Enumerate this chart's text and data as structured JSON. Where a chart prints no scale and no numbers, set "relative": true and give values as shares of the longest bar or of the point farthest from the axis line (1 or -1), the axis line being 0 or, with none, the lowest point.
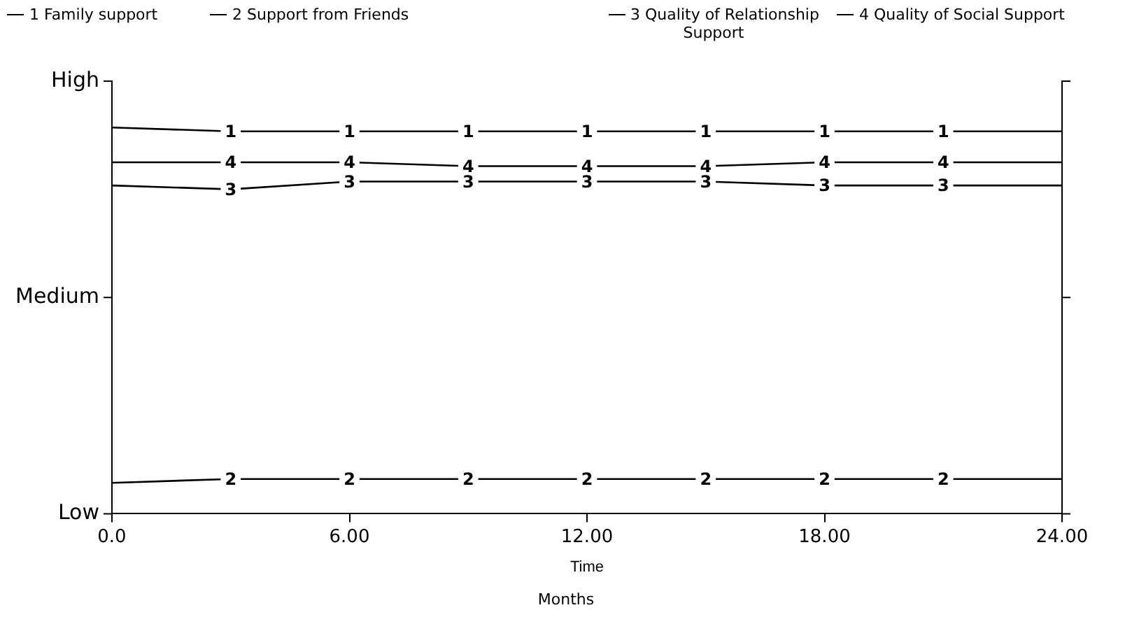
{
  "chart_data": {
    "type": "line",
    "xlabel": "Time",
    "annotations": [
      "Low",
      "Medium",
      "High",
      "Months",
      {
        "text": "1",
        "x": 3,
        "y": 0.99
      },
      {
        "text": "1",
        "x": 6,
        "y": 0.99
      },
      {
        "text": "1",
        "x": 9,
        "y": 0.99
      },
      {
        "text": "1",
        "x": 12,
        "y": 0.99
      },
      {
        "text": "1",
        "x": 15,
        "y": 0.99
      },
      {
        "text": "1",
        "x": 18,
        "y": 0.99
      },
      {
        "text": "1",
        "x": 21,
        "y": 0.99
      },
      {
        "text": "2",
        "x": 3,
        "y": 0.09
      },
      {
        "text": "2",
        "x": 6,
        "y": 0.09
      },
      {
        "text": "2",
        "x": 9,
        "y": 0.09
      },
      {
        "text": "2",
        "x": 12,
        "y": 0.09
      },
      {
        "text": "2",
        "x": 15,
        "y": 0.09
      },
      {
        "text": "2",
        "x": 18,
        "y": 0.09
      },
      {
        "text": "2",
        "x": 21,
        "y": 0.09
      },
      {
        "text": "3",
        "x": 3,
        "y": 0.84
      },
      {
        "text": "3",
        "x": 6,
        "y": 0.86
      },
      {
        "text": "3",
        "x": 9,
        "y": 0.86
      },
      {
        "text": "3",
        "x": 12,
        "y": 0.86
      },
      {
        "text": "3",
        "x": 15,
        "y": 0.86
      },
      {
        "text": "3",
        "x": 18,
        "y": 0.85
      },
      {
        "text": "3",
        "x": 21,
        "y": 0.85
      },
      {
        "text": "4",
        "x": 3,
        "y": 0.91
      },
      {
        "text": "4",
        "x": 6,
        "y": 0.91
      },
      {
        "text": "4",
        "x": 9,
        "y": 0.9
      },
      {
        "text": "4",
        "x": 12,
        "y": 0.9
      },
      {
        "text": "4",
        "x": 15,
        "y": 0.9
      },
      {
        "text": "4",
        "x": 18,
        "y": 0.91
      },
      {
        "text": "4",
        "x": 21,
        "y": 0.91
      }
    ],
    "x": [
      0,
      3,
      6,
      9,
      12,
      15,
      18,
      21,
      24
    ],
    "series": [
      {
        "name": "1 Family support",
        "color": "#000000",
        "values": [
          1,
          0.99,
          0.99,
          0.99,
          0.99,
          0.99,
          0.99,
          0.99,
          0.99
        ]
      },
      {
        "name": "2 Support from Friends",
        "color": "#000000",
        "values": [
          0.08,
          0.09,
          0.09,
          0.09,
          0.09,
          0.09,
          0.09,
          0.09,
          0.09
        ]
      },
      {
        "name": "3 Quality of Relationship Support",
        "color": "#000000",
        "values": [
          0.85,
          0.84,
          0.86,
          0.86,
          0.86,
          0.86,
          0.85,
          0.85,
          0.85
        ]
      },
      {
        "name": "4 Quality of Social Support",
        "color": "#000000",
        "values": [
          0.91,
          0.91,
          0.91,
          0.9,
          0.9,
          0.9,
          0.91,
          0.91,
          0.91
        ]
      }
    ],
    "xlim": [
      0,
      24
    ],
    "xticks": [
      {
        "value": 0,
        "label": "0.0"
      },
      {
        "value": 6,
        "label": "6.00"
      },
      {
        "value": 12,
        "label": "12.00"
      },
      {
        "value": 18,
        "label": "18.00"
      },
      {
        "value": 24,
        "label": "24.00"
      }
    ],
    "relative": true,
    "grid": false,
    "legend": "top",
    "line_style": "solid"
  }
}
